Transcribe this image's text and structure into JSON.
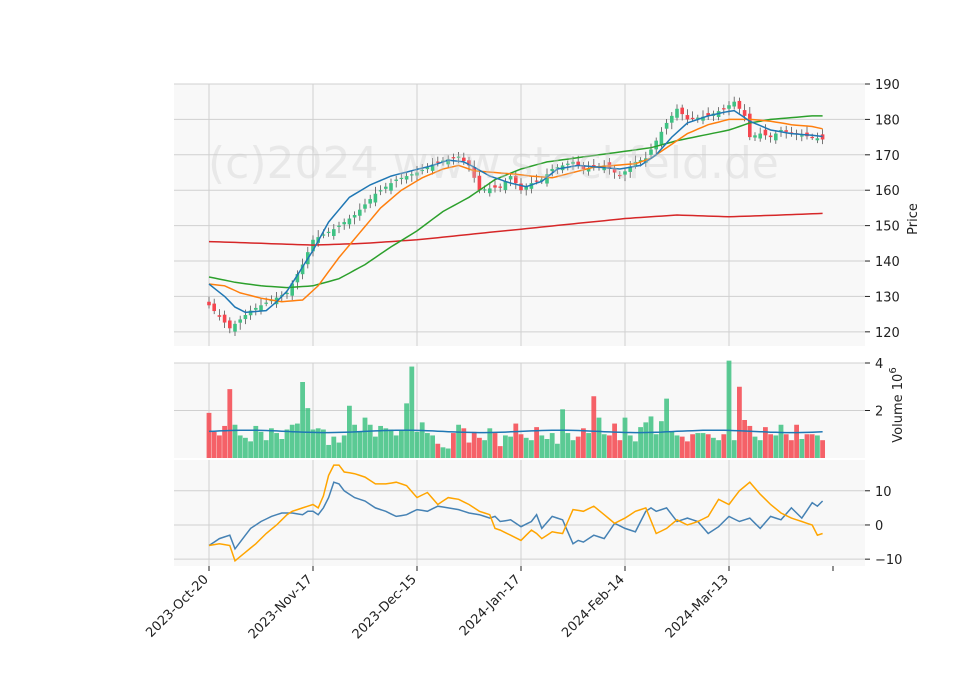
{
  "chart_data": {
    "type": "candlestick",
    "watermark": "(c)2024 www.stockfeld.de",
    "colors": {
      "up": "#3fc283",
      "down": "#f5464f",
      "ma_fast": "#1f77b4",
      "ma_mid": "#ff7f0e",
      "ma_slow": "#2ca02c",
      "ma_long": "#d62728",
      "volume_ma": "#1f77b4",
      "macd": "#4682b4",
      "signal": "#ffa500",
      "panel_bg": "#f8f8f8",
      "grid": "#d0d0d0"
    },
    "x_ticks": [
      {
        "label": "2023-Oct-20",
        "index": 0
      },
      {
        "label": "2023-Nov-17",
        "index": 20
      },
      {
        "label": "2023-Dec-15",
        "index": 40
      },
      {
        "label": "2024-Jan-17",
        "index": 60
      },
      {
        "label": "2024-Feb-14",
        "index": 80
      },
      {
        "label": "2024-Mar-13",
        "index": 100
      }
    ],
    "price_panel": {
      "ylabel": "Price",
      "ylim": [
        116,
        190
      ],
      "yticks": [
        "120",
        "130",
        "140",
        "150",
        "160",
        "170",
        "180",
        "190"
      ],
      "close_anchors": [
        [
          0,
          127.5
        ],
        [
          4,
          121
        ],
        [
          8,
          126
        ],
        [
          12,
          129
        ],
        [
          15,
          131
        ],
        [
          18,
          139
        ],
        [
          20,
          146
        ],
        [
          24,
          149
        ],
        [
          28,
          153
        ],
        [
          32,
          159
        ],
        [
          36,
          163
        ],
        [
          40,
          165
        ],
        [
          44,
          168
        ],
        [
          48,
          169.5
        ],
        [
          50,
          167
        ],
        [
          52,
          160
        ],
        [
          56,
          161
        ],
        [
          58,
          164
        ],
        [
          60,
          160
        ],
        [
          62,
          162
        ],
        [
          64,
          163
        ],
        [
          66,
          166
        ],
        [
          70,
          168
        ],
        [
          72,
          166
        ],
        [
          76,
          167
        ],
        [
          79,
          164
        ],
        [
          82,
          168
        ],
        [
          84,
          169
        ],
        [
          86,
          174
        ],
        [
          88,
          179
        ],
        [
          90,
          183
        ],
        [
          92,
          180
        ],
        [
          96,
          181
        ],
        [
          99,
          183
        ],
        [
          101,
          185
        ],
        [
          103,
          181
        ],
        [
          104,
          175
        ],
        [
          106,
          176
        ],
        [
          108,
          175
        ],
        [
          110,
          177
        ],
        [
          112,
          176
        ],
        [
          116,
          175
        ],
        [
          119,
          174
        ]
      ],
      "ma_fast": [
        [
          0,
          133.5
        ],
        [
          3,
          130
        ],
        [
          5,
          127
        ],
        [
          7,
          125.5
        ],
        [
          11,
          126
        ],
        [
          13,
          128.5
        ],
        [
          15,
          131.5
        ],
        [
          17,
          136
        ],
        [
          20,
          143
        ],
        [
          23,
          151
        ],
        [
          27,
          158
        ],
        [
          31,
          161.5
        ],
        [
          35,
          164
        ],
        [
          39,
          165.5
        ],
        [
          43,
          167
        ],
        [
          46,
          168.5
        ],
        [
          49,
          168
        ],
        [
          51,
          166.5
        ],
        [
          54,
          164
        ],
        [
          58,
          162
        ],
        [
          61,
          161
        ],
        [
          64,
          162.5
        ],
        [
          67,
          166
        ],
        [
          71,
          167
        ],
        [
          75,
          166.5
        ],
        [
          79,
          166
        ],
        [
          83,
          167
        ],
        [
          86,
          170
        ],
        [
          89,
          175
        ],
        [
          92,
          179
        ],
        [
          96,
          181
        ],
        [
          99,
          182
        ],
        [
          101,
          182.5
        ],
        [
          104,
          179.5
        ],
        [
          108,
          177
        ],
        [
          112,
          176
        ],
        [
          116,
          175.5
        ],
        [
          119,
          175
        ]
      ],
      "ma_mid": [
        [
          0,
          133.5
        ],
        [
          3,
          133
        ],
        [
          6,
          131
        ],
        [
          10,
          129.5
        ],
        [
          14,
          128.5
        ],
        [
          18,
          129
        ],
        [
          21,
          133
        ],
        [
          25,
          141
        ],
        [
          29,
          148
        ],
        [
          33,
          155
        ],
        [
          37,
          160
        ],
        [
          41,
          163.5
        ],
        [
          45,
          166
        ],
        [
          48,
          167
        ],
        [
          51,
          165.5
        ],
        [
          55,
          165
        ],
        [
          59,
          164.5
        ],
        [
          62,
          164
        ],
        [
          66,
          163.5
        ],
        [
          70,
          165
        ],
        [
          74,
          166.5
        ],
        [
          78,
          167
        ],
        [
          82,
          167.5
        ],
        [
          85,
          169
        ],
        [
          88,
          172
        ],
        [
          92,
          176
        ],
        [
          96,
          178.5
        ],
        [
          100,
          180
        ],
        [
          104,
          180
        ],
        [
          108,
          179.5
        ],
        [
          112,
          178.5
        ],
        [
          116,
          178
        ],
        [
          119,
          177
        ]
      ],
      "ma_slow": [
        [
          0,
          135.5
        ],
        [
          5,
          134
        ],
        [
          10,
          133
        ],
        [
          15,
          132.5
        ],
        [
          20,
          133
        ],
        [
          25,
          135
        ],
        [
          30,
          139
        ],
        [
          35,
          144
        ],
        [
          40,
          148.5
        ],
        [
          45,
          154
        ],
        [
          50,
          158
        ],
        [
          55,
          163
        ],
        [
          60,
          166
        ],
        [
          65,
          168
        ],
        [
          70,
          169
        ],
        [
          75,
          170
        ],
        [
          80,
          171
        ],
        [
          85,
          172
        ],
        [
          90,
          174
        ],
        [
          95,
          175.5
        ],
        [
          100,
          177
        ],
        [
          104,
          179
        ],
        [
          108,
          180
        ],
        [
          112,
          180.5
        ],
        [
          116,
          181
        ],
        [
          119,
          181
        ]
      ],
      "ma_long": [
        [
          0,
          145.5
        ],
        [
          10,
          145
        ],
        [
          20,
          144.5
        ],
        [
          30,
          145
        ],
        [
          40,
          146
        ],
        [
          50,
          147.5
        ],
        [
          60,
          149
        ],
        [
          70,
          150.5
        ],
        [
          80,
          152
        ],
        [
          90,
          153
        ],
        [
          100,
          152.5
        ],
        [
          110,
          153
        ],
        [
          119,
          153.5
        ]
      ]
    },
    "volume_panel": {
      "ylabel": "Volume  10^6",
      "ylim": [
        0,
        4
      ],
      "yticks": [
        "2",
        "4"
      ],
      "values": [
        1.9,
        1.1,
        0.95,
        1.35,
        2.9,
        1.4,
        0.95,
        0.85,
        0.7,
        1.35,
        1.1,
        0.75,
        1.25,
        1.05,
        0.8,
        1.2,
        1.4,
        1.45,
        3.2,
        2.1,
        1.2,
        1.25,
        1.2,
        0.55,
        0.9,
        0.65,
        0.95,
        2.2,
        1.4,
        1.1,
        1.7,
        1.4,
        0.9,
        1.35,
        1.25,
        1.2,
        0.95,
        1.15,
        2.3,
        3.85,
        1.1,
        1.5,
        1.05,
        0.95,
        0.6,
        0.45,
        0.4,
        1.05,
        1.4,
        1.25,
        0.65,
        1.1,
        0.85,
        0.75,
        1.25,
        1.05,
        0.5,
        0.95,
        0.9,
        1.45,
        1.0,
        0.85,
        0.75,
        1.3,
        0.95,
        0.8,
        1.05,
        0.6,
        2.05,
        1.05,
        0.75,
        0.9,
        1.25,
        1.05,
        2.6,
        1.7,
        1.0,
        0.95,
        1.45,
        0.75,
        1.7,
        0.95,
        0.7,
        1.3,
        1.5,
        1.75,
        1.0,
        1.55,
        2.5,
        1.1,
        0.95,
        0.9,
        0.7,
        1.0,
        1.05,
        1.05,
        1.0,
        0.85,
        0.75,
        1.0,
        4.1,
        0.75,
        3.0,
        1.6,
        1.35,
        0.9,
        0.75,
        1.3,
        1.0,
        0.95,
        1.4,
        1.0,
        0.75,
        1.4,
        0.8,
        1.0,
        1.0,
        0.95,
        0.75
      ],
      "ma_level": 1.12
    },
    "macd_panel": {
      "ylim": [
        -12,
        19
      ],
      "yticks": [
        "10",
        "0",
        "−10"
      ],
      "macd": [
        [
          0,
          -6
        ],
        [
          2,
          -4
        ],
        [
          4,
          -3
        ],
        [
          5,
          -7
        ],
        [
          6,
          -5
        ],
        [
          8,
          -1
        ],
        [
          10,
          1
        ],
        [
          12,
          2.5
        ],
        [
          14,
          3.5
        ],
        [
          16,
          3.5
        ],
        [
          18,
          3
        ],
        [
          19,
          4
        ],
        [
          20,
          4
        ],
        [
          21,
          3
        ],
        [
          22,
          5
        ],
        [
          23,
          8
        ],
        [
          24,
          12.5
        ],
        [
          25,
          12
        ],
        [
          26,
          10
        ],
        [
          28,
          8
        ],
        [
          30,
          7
        ],
        [
          32,
          5
        ],
        [
          34,
          4
        ],
        [
          36,
          2.5
        ],
        [
          38,
          3
        ],
        [
          40,
          4.5
        ],
        [
          42,
          4
        ],
        [
          44,
          5.5
        ],
        [
          46,
          5
        ],
        [
          48,
          4.5
        ],
        [
          50,
          3.5
        ],
        [
          52,
          3
        ],
        [
          54,
          2
        ],
        [
          55,
          2.5
        ],
        [
          56,
          1
        ],
        [
          58,
          1.5
        ],
        [
          60,
          -0.5
        ],
        [
          62,
          1
        ],
        [
          63,
          3
        ],
        [
          64,
          -1
        ],
        [
          66,
          2.5
        ],
        [
          68,
          1.5
        ],
        [
          70,
          -5.5
        ],
        [
          71,
          -4.5
        ],
        [
          72,
          -5
        ],
        [
          74,
          -3
        ],
        [
          76,
          -4
        ],
        [
          78,
          0.5
        ],
        [
          80,
          -1
        ],
        [
          82,
          -2
        ],
        [
          84,
          4
        ],
        [
          85,
          5
        ],
        [
          86,
          4
        ],
        [
          88,
          5
        ],
        [
          90,
          1
        ],
        [
          92,
          2
        ],
        [
          94,
          1
        ],
        [
          96,
          -2.5
        ],
        [
          98,
          -0.5
        ],
        [
          100,
          2.5
        ],
        [
          102,
          1
        ],
        [
          104,
          2
        ],
        [
          106,
          -1
        ],
        [
          108,
          2.5
        ],
        [
          110,
          1.5
        ],
        [
          112,
          5
        ],
        [
          114,
          2
        ],
        [
          116,
          6.5
        ],
        [
          117,
          5.5
        ],
        [
          118,
          7
        ],
        [
          119,
          8
        ]
      ],
      "signal": [
        [
          0,
          -6
        ],
        [
          2,
          -5.5
        ],
        [
          4,
          -6
        ],
        [
          5,
          -10.5
        ],
        [
          7,
          -8
        ],
        [
          9,
          -5.5
        ],
        [
          11,
          -2.5
        ],
        [
          13,
          0
        ],
        [
          15,
          3
        ],
        [
          16,
          4
        ],
        [
          18,
          5
        ],
        [
          20,
          6
        ],
        [
          21,
          5
        ],
        [
          22,
          8.5
        ],
        [
          23,
          14.5
        ],
        [
          24,
          17.5
        ],
        [
          25,
          17.5
        ],
        [
          26,
          15.5
        ],
        [
          28,
          15
        ],
        [
          30,
          14
        ],
        [
          32,
          12
        ],
        [
          34,
          12
        ],
        [
          36,
          12.5
        ],
        [
          38,
          11.5
        ],
        [
          40,
          8
        ],
        [
          42,
          9.5
        ],
        [
          44,
          6
        ],
        [
          46,
          8
        ],
        [
          48,
          7.5
        ],
        [
          50,
          6
        ],
        [
          52,
          4
        ],
        [
          54,
          3
        ],
        [
          55,
          -1
        ],
        [
          56,
          -1.5
        ],
        [
          58,
          -3
        ],
        [
          60,
          -4.5
        ],
        [
          62,
          -1.5
        ],
        [
          63,
          -2.5
        ],
        [
          64,
          -4
        ],
        [
          66,
          -2
        ],
        [
          68,
          -2.5
        ],
        [
          70,
          4.5
        ],
        [
          72,
          4
        ],
        [
          74,
          5.5
        ],
        [
          76,
          3
        ],
        [
          78,
          0.5
        ],
        [
          80,
          2
        ],
        [
          82,
          4
        ],
        [
          84,
          5
        ],
        [
          86,
          -2.5
        ],
        [
          88,
          -1
        ],
        [
          90,
          1.5
        ],
        [
          92,
          0
        ],
        [
          94,
          1
        ],
        [
          96,
          2.5
        ],
        [
          98,
          7.5
        ],
        [
          100,
          6
        ],
        [
          102,
          10
        ],
        [
          104,
          12.5
        ],
        [
          106,
          9
        ],
        [
          108,
          6
        ],
        [
          110,
          3.5
        ],
        [
          112,
          2
        ],
        [
          114,
          1
        ],
        [
          116,
          0
        ],
        [
          117,
          -3
        ],
        [
          118,
          -2.5
        ],
        [
          119,
          -3
        ]
      ]
    }
  }
}
